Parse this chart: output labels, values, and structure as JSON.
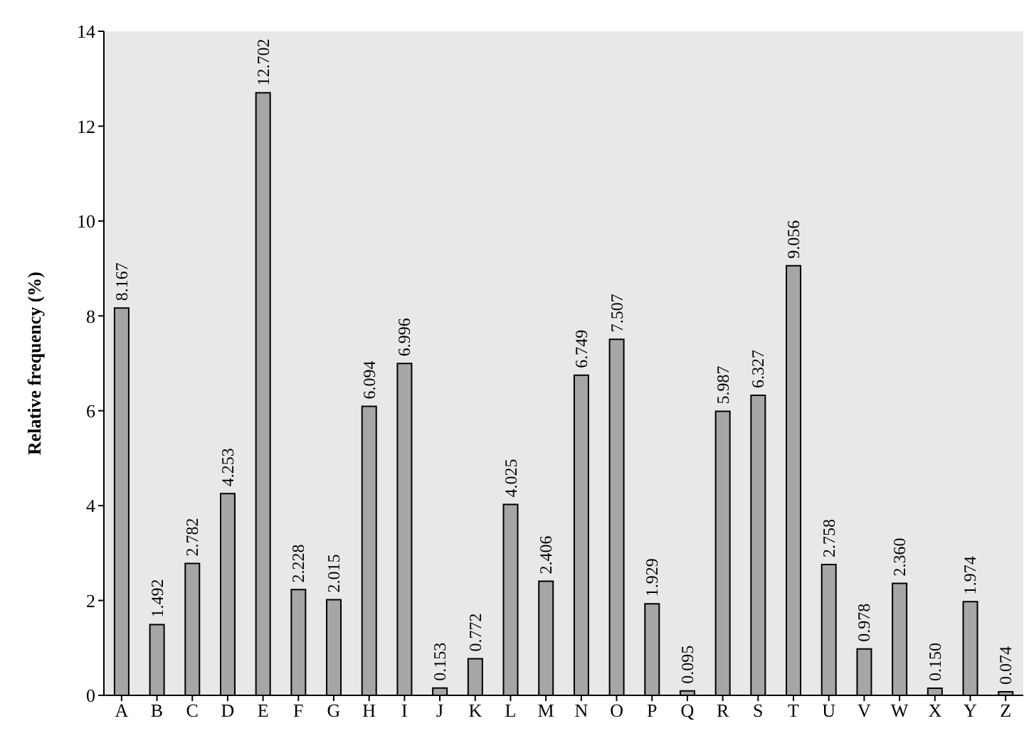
{
  "chart_data": {
    "type": "bar",
    "ylabel": "Relative frequency (%)",
    "categories": [
      "A",
      "B",
      "C",
      "D",
      "E",
      "F",
      "G",
      "H",
      "I",
      "J",
      "K",
      "L",
      "M",
      "N",
      "O",
      "P",
      "Q",
      "R",
      "S",
      "T",
      "U",
      "V",
      "W",
      "X",
      "Y",
      "Z"
    ],
    "values": [
      8.167,
      1.492,
      2.782,
      4.253,
      12.702,
      2.228,
      2.015,
      6.094,
      6.996,
      0.153,
      0.772,
      4.025,
      2.406,
      6.749,
      7.507,
      1.929,
      0.095,
      5.987,
      6.327,
      9.056,
      2.758,
      0.978,
      2.36,
      0.15,
      1.974,
      0.074
    ],
    "value_labels": [
      "8.167",
      "1.492",
      "2.782",
      "4.253",
      "12.702",
      "2.228",
      "2.015",
      "6.094",
      "6.996",
      "0.153",
      "0.772",
      "4.025",
      "2.406",
      "6.749",
      "7.507",
      "1.929",
      "0.095",
      "5.987",
      "6.327",
      "9.056",
      "2.758",
      "0.978",
      "2.360",
      "0.150",
      "1.974",
      "0.074"
    ],
    "color": "#a6a6a6",
    "ylim": [
      0,
      14
    ],
    "yticks": [
      0,
      2,
      4,
      6,
      8,
      10,
      12,
      14
    ]
  }
}
